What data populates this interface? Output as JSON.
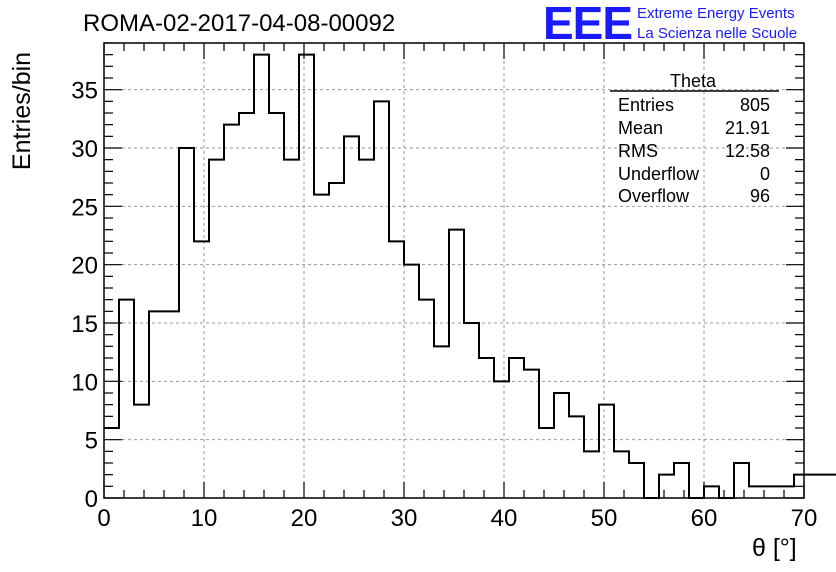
{
  "header": {
    "title": "ROMA-02-2017-04-08-00092",
    "logo_mark": "EEE",
    "logo_line1": "Extreme Energy Events",
    "logo_line2": "La Scienza nelle Scuole"
  },
  "colors": {
    "logo": "#1a1aff",
    "line": "#000000",
    "grid": "#9a9a9a"
  },
  "stats": {
    "title": "Theta",
    "rows": [
      {
        "label": "Entries",
        "value": "805"
      },
      {
        "label": "Mean",
        "value": "21.91"
      },
      {
        "label": "RMS",
        "value": "12.58"
      },
      {
        "label": "Underflow",
        "value": "0"
      },
      {
        "label": "Overflow",
        "value": "96"
      }
    ]
  },
  "chart_data": {
    "type": "histogram",
    "title": "ROMA-02-2017-04-08-00092",
    "xlabel": "θ [°]",
    "ylabel": "Entries/bin",
    "xlim": [
      0,
      70
    ],
    "ylim": [
      0,
      39
    ],
    "bin_width": 1.5,
    "x_start": 0,
    "values": [
      6,
      17,
      8,
      16,
      16,
      30,
      22,
      29,
      32,
      33,
      38,
      33,
      29,
      38,
      26,
      27,
      31,
      29,
      34,
      22,
      20,
      17,
      13,
      23,
      15,
      12,
      10,
      12,
      11,
      6,
      9,
      7,
      4,
      8,
      4,
      3,
      0,
      2,
      3,
      0,
      1,
      0,
      3,
      1,
      1,
      1,
      2,
      2,
      2
    ],
    "xticks": [
      0,
      10,
      20,
      30,
      40,
      50,
      60,
      70
    ],
    "yticks": [
      0,
      5,
      10,
      15,
      20,
      25,
      30,
      35
    ],
    "grid": true,
    "legend": "stats box top-right"
  }
}
